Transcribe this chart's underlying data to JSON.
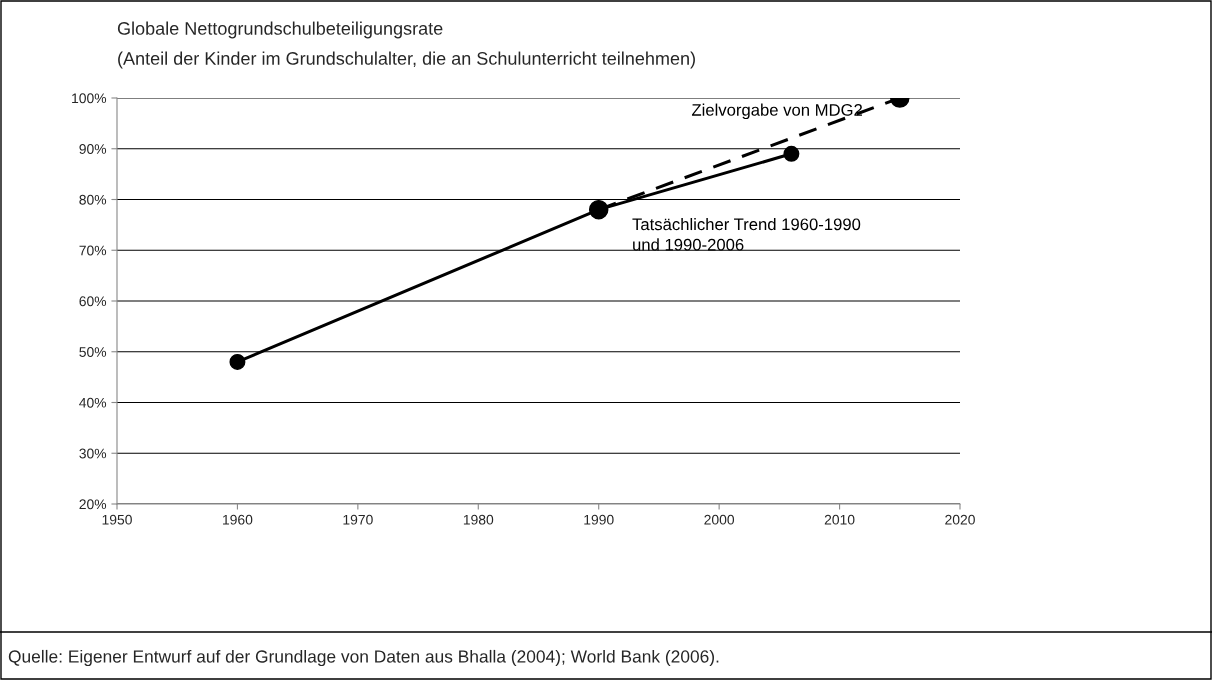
{
  "chart_data": {
    "type": "line",
    "title": "Globale Nettogrundschulbeteiligungsrate",
    "subtitle": "(Anteil der Kinder im Grundschulalter, die an Schulunterricht teilnehmen)",
    "series": [
      {
        "name": "Tatsächlicher Trend 1960-1990\nund 1990-2006",
        "color": "#000000",
        "x": [
          1960,
          1990,
          2006
        ],
        "values": [
          48,
          78,
          89
        ],
        "line_style": "solid",
        "marker": "circle"
      },
      {
        "name": "Zielvorgabe von MDG2",
        "color": "#000000",
        "x": [
          1990,
          2015
        ],
        "values": [
          78,
          100
        ],
        "line_style": "dashed",
        "marker": "circle"
      }
    ],
    "xlim": [
      1950,
      2020
    ],
    "xticks": [
      1950,
      1960,
      1970,
      1980,
      1990,
      2000,
      2010,
      2020
    ],
    "ylim": [
      20,
      100
    ],
    "yticks": [
      {
        "value": 20,
        "label": "20%"
      },
      {
        "value": 30,
        "label": "30%"
      },
      {
        "value": 40,
        "label": "40%"
      },
      {
        "value": 50,
        "label": "50%"
      },
      {
        "value": 60,
        "label": "60%"
      },
      {
        "value": 70,
        "label": "70%"
      },
      {
        "value": 80,
        "label": "80%"
      },
      {
        "value": 90,
        "label": "90%"
      },
      {
        "value": 100,
        "label": "100%"
      }
    ],
    "grid": "y",
    "legend": false,
    "annotations": [
      "Quelle: Eigener Entwurf auf der Grundlage von Daten aus Bhalla (2004); World Bank (2006)."
    ]
  }
}
